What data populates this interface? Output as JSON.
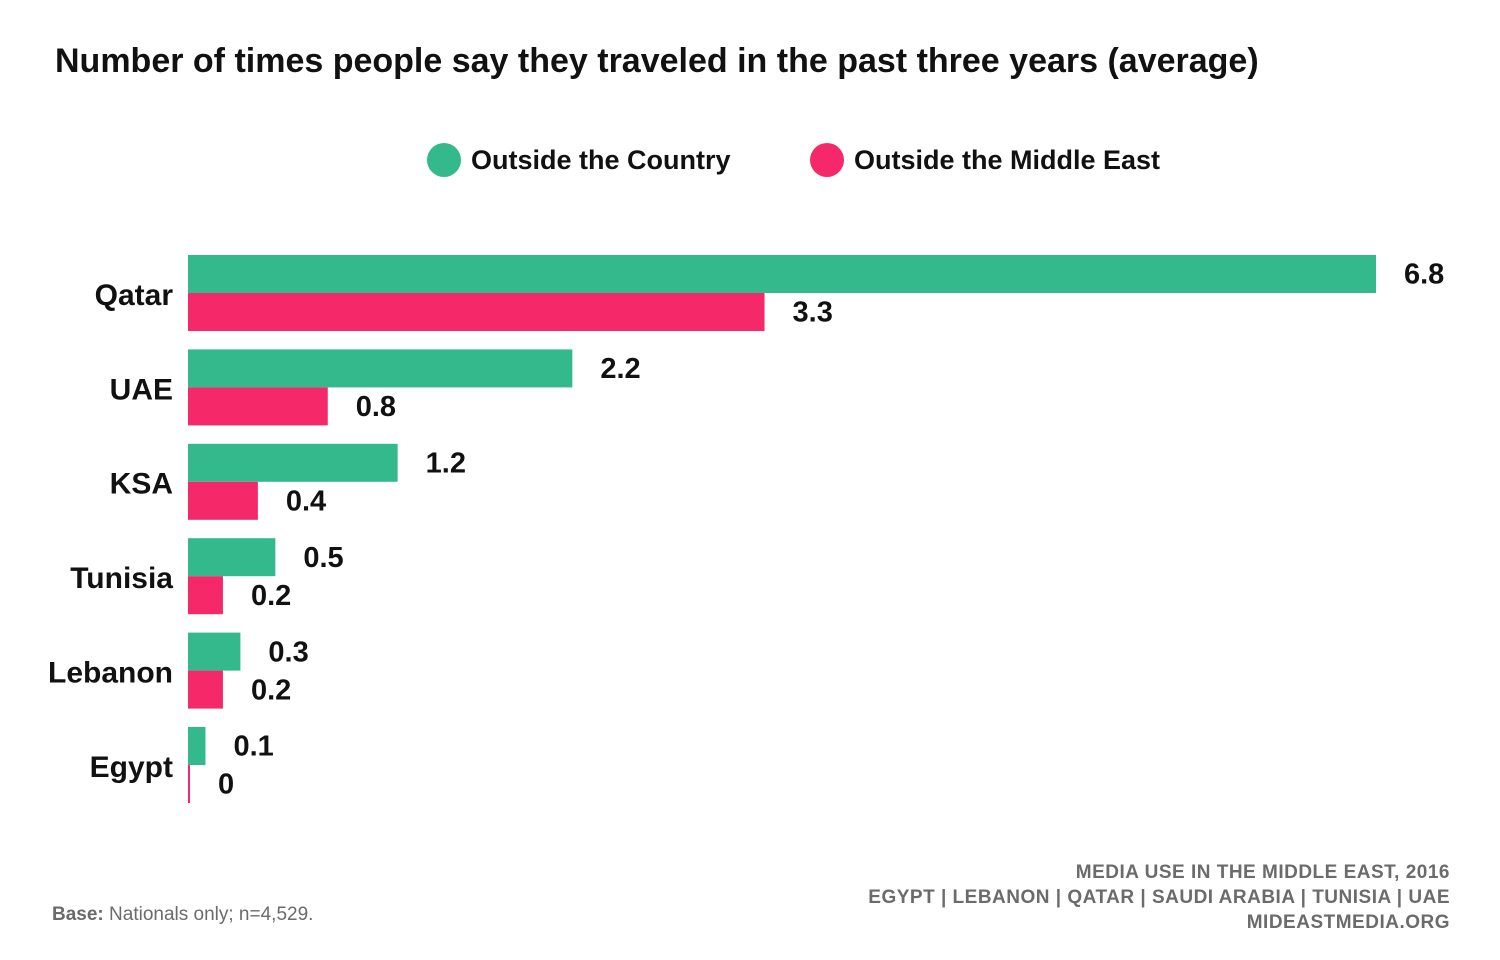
{
  "title": "Number of times people say they traveled in the past three years (average)",
  "legend": {
    "items": [
      {
        "label": "Outside the Country",
        "color": "#33b98b"
      },
      {
        "label": "Outside the Middle East",
        "color": "#f5286a"
      }
    ]
  },
  "chart_data": {
    "type": "bar",
    "orientation": "horizontal",
    "title": "Number of times people say they traveled in the past three years (average)",
    "categories": [
      "Qatar",
      "UAE",
      "KSA",
      "Tunisia",
      "Lebanon",
      "Egypt"
    ],
    "series": [
      {
        "name": "Outside the Country",
        "color": "#33b98b",
        "values": [
          6.8,
          2.2,
          1.2,
          0.5,
          0.3,
          0.1
        ]
      },
      {
        "name": "Outside the Middle East",
        "color": "#f5286a",
        "values": [
          3.3,
          0.8,
          0.4,
          0.2,
          0.2,
          0
        ]
      }
    ],
    "value_labels": [
      [
        "6.8",
        "2.2",
        "1.2",
        "0.5",
        "0.3",
        "0.1"
      ],
      [
        "3.3",
        "0.8",
        "0.4",
        "0.2",
        "0.2",
        "0"
      ]
    ],
    "xlim": [
      0,
      6.8
    ],
    "grid": false,
    "legend_position": "top-center"
  },
  "footer": {
    "base_label": "Base:",
    "base_text": " Nationals only; n=4,529.",
    "source_lines": [
      "MEDIA USE IN THE MIDDLE EAST, 2016",
      "EGYPT | LEBANON | QATAR | SAUDI ARABIA | TUNISIA | UAE",
      "MIDEASTMEDIA.ORG"
    ]
  }
}
